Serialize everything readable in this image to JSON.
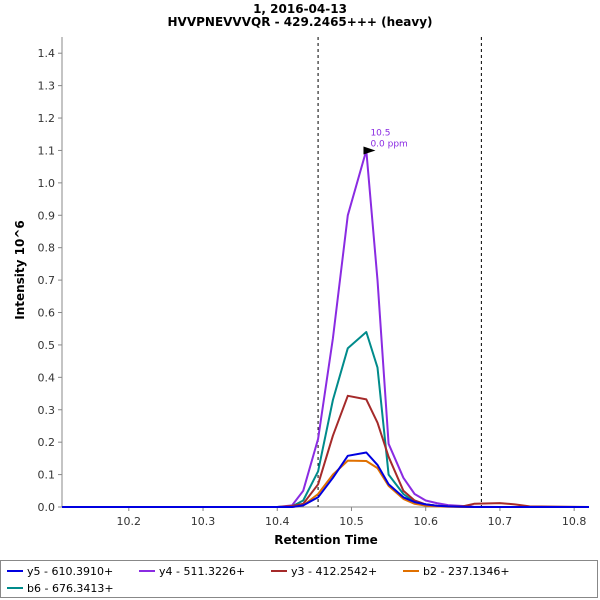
{
  "chart_data": {
    "type": "line",
    "title": "1, 2016-04-13",
    "subtitle": "HVVPNEVVVQR - 429.2465+++ (heavy)",
    "xlabel": "Retention Time",
    "ylabel": "Intensity 10^6",
    "xlim": [
      10.11,
      10.82
    ],
    "ylim": [
      0,
      1.45
    ],
    "x_ticks": [
      "10.2",
      "10.3",
      "10.4",
      "10.5",
      "10.6",
      "10.7",
      "10.8"
    ],
    "x_tick_values": [
      10.2,
      10.3,
      10.4,
      10.5,
      10.6,
      10.7,
      10.8
    ],
    "y_ticks": [
      "0.0",
      "0.1",
      "0.2",
      "0.3",
      "0.4",
      "0.5",
      "0.6",
      "0.7",
      "0.8",
      "0.9",
      "1.0",
      "1.1",
      "1.2",
      "1.3",
      "1.4"
    ],
    "y_tick_values": [
      0.0,
      0.1,
      0.2,
      0.3,
      0.4,
      0.5,
      0.6,
      0.7,
      0.8,
      0.9,
      1.0,
      1.1,
      1.2,
      1.3,
      1.4
    ],
    "integration_boundaries": [
      10.455,
      10.675
    ],
    "annotation": {
      "x": 10.535,
      "y": 1.1,
      "line1": "10.5",
      "line2": "0.0 ppm",
      "color": "#8a2be2"
    },
    "series": [
      {
        "name": "y5 - 610.3910+",
        "color": "#0000e0",
        "x": [
          10.11,
          10.4,
          10.42,
          10.435,
          10.455,
          10.475,
          10.495,
          10.52,
          10.535,
          10.55,
          10.57,
          10.585,
          10.6,
          10.615,
          10.63,
          10.65,
          10.665,
          10.7,
          10.82
        ],
        "y": [
          0,
          0,
          0,
          0.005,
          0.03,
          0.09,
          0.158,
          0.168,
          0.13,
          0.07,
          0.03,
          0.015,
          0.008,
          0.004,
          0.002,
          0.001,
          0,
          0,
          0
        ]
      },
      {
        "name": "y4 - 511.3226+",
        "color": "#8a2be2",
        "x": [
          10.11,
          10.4,
          10.42,
          10.435,
          10.455,
          10.475,
          10.495,
          10.52,
          10.535,
          10.55,
          10.57,
          10.585,
          10.6,
          10.615,
          10.63,
          10.65,
          10.665,
          10.7,
          10.82
        ],
        "y": [
          0,
          0,
          0.005,
          0.05,
          0.21,
          0.52,
          0.9,
          1.1,
          0.7,
          0.195,
          0.09,
          0.04,
          0.02,
          0.012,
          0.006,
          0.003,
          0.001,
          0,
          0
        ]
      },
      {
        "name": "y3 - 412.2542+",
        "color": "#a52a2a",
        "x": [
          10.11,
          10.4,
          10.42,
          10.435,
          10.455,
          10.475,
          10.495,
          10.52,
          10.535,
          10.55,
          10.57,
          10.585,
          10.6,
          10.615,
          10.63,
          10.65,
          10.665,
          10.7,
          10.72,
          10.74,
          10.82
        ],
        "y": [
          0,
          0,
          0.003,
          0.01,
          0.07,
          0.22,
          0.343,
          0.332,
          0.26,
          0.155,
          0.05,
          0.02,
          0.008,
          0.004,
          0.002,
          0.002,
          0.01,
          0.012,
          0.008,
          0.002,
          0
        ]
      },
      {
        "name": "b2 - 237.1346+",
        "color": "#e07000",
        "x": [
          10.11,
          10.4,
          10.42,
          10.435,
          10.455,
          10.475,
          10.495,
          10.52,
          10.535,
          10.55,
          10.57,
          10.585,
          10.6,
          10.615,
          10.63,
          10.65,
          10.665,
          10.7,
          10.82
        ],
        "y": [
          0,
          0,
          0,
          0.005,
          0.04,
          0.1,
          0.143,
          0.142,
          0.12,
          0.065,
          0.025,
          0.01,
          0.004,
          0.002,
          0.001,
          0,
          0,
          0,
          0
        ]
      },
      {
        "name": "b6 - 676.3413+",
        "color": "#008b8b",
        "x": [
          10.11,
          10.4,
          10.42,
          10.435,
          10.455,
          10.475,
          10.495,
          10.52,
          10.535,
          10.55,
          10.57,
          10.585,
          10.6,
          10.615,
          10.63,
          10.65,
          10.665,
          10.7,
          10.82
        ],
        "y": [
          0,
          0,
          0.002,
          0.02,
          0.11,
          0.33,
          0.49,
          0.54,
          0.43,
          0.1,
          0.04,
          0.015,
          0.008,
          0.004,
          0.002,
          0.001,
          0,
          0,
          0
        ]
      }
    ]
  }
}
